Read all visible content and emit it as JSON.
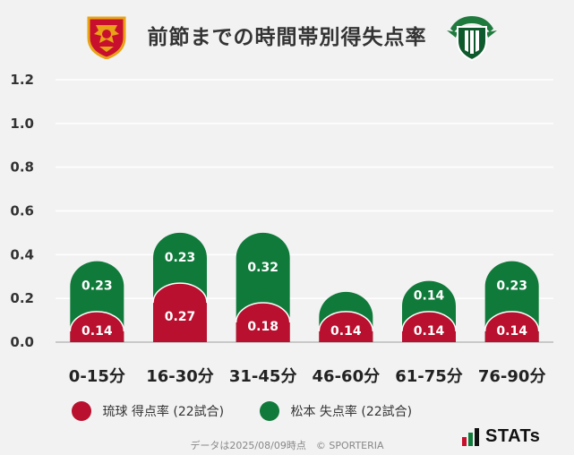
{
  "title": "前節までの時間帯別得失点率",
  "colors": {
    "ryukyu": "#b8102e",
    "matsumoto": "#0f7a3a",
    "axis": "#888888",
    "grid": "#ffffff"
  },
  "logos": {
    "left": "fc-ryukyu-emblem",
    "right": "matsumoto-yamaga-emblem"
  },
  "legend": {
    "ryukyu": "琉球 得点率 (22試合)",
    "matsumoto": "松本 失点率 (22試合)"
  },
  "footer": "データは2025/08/09時点　© SPORTERIA",
  "brand": "STATs",
  "chart_data": {
    "type": "bar",
    "stacked": true,
    "categories": [
      "0-15分",
      "16-30分",
      "31-45分",
      "46-60分",
      "61-75分",
      "76-90分"
    ],
    "y_ticks": [
      "0.0",
      "0.2",
      "0.4",
      "0.6",
      "0.8",
      "1.0",
      "1.2"
    ],
    "ylim": [
      0,
      1.2
    ],
    "series": [
      {
        "name": "琉球 得点率 (22試合)",
        "values": [
          0.14,
          0.27,
          0.18,
          0.14,
          0.14,
          0.14
        ],
        "labels": [
          "0.14",
          "0.27",
          "0.18",
          "0.14",
          "0.14",
          "0.14"
        ]
      },
      {
        "name": "松本 失点率 (22試合)",
        "values": [
          0.23,
          0.23,
          0.32,
          0.09,
          0.14,
          0.23
        ],
        "labels": [
          "0.23",
          "0.23",
          "0.32",
          "",
          "0.14",
          "0.23"
        ]
      }
    ],
    "grid": true,
    "legend_position": "bottom"
  }
}
